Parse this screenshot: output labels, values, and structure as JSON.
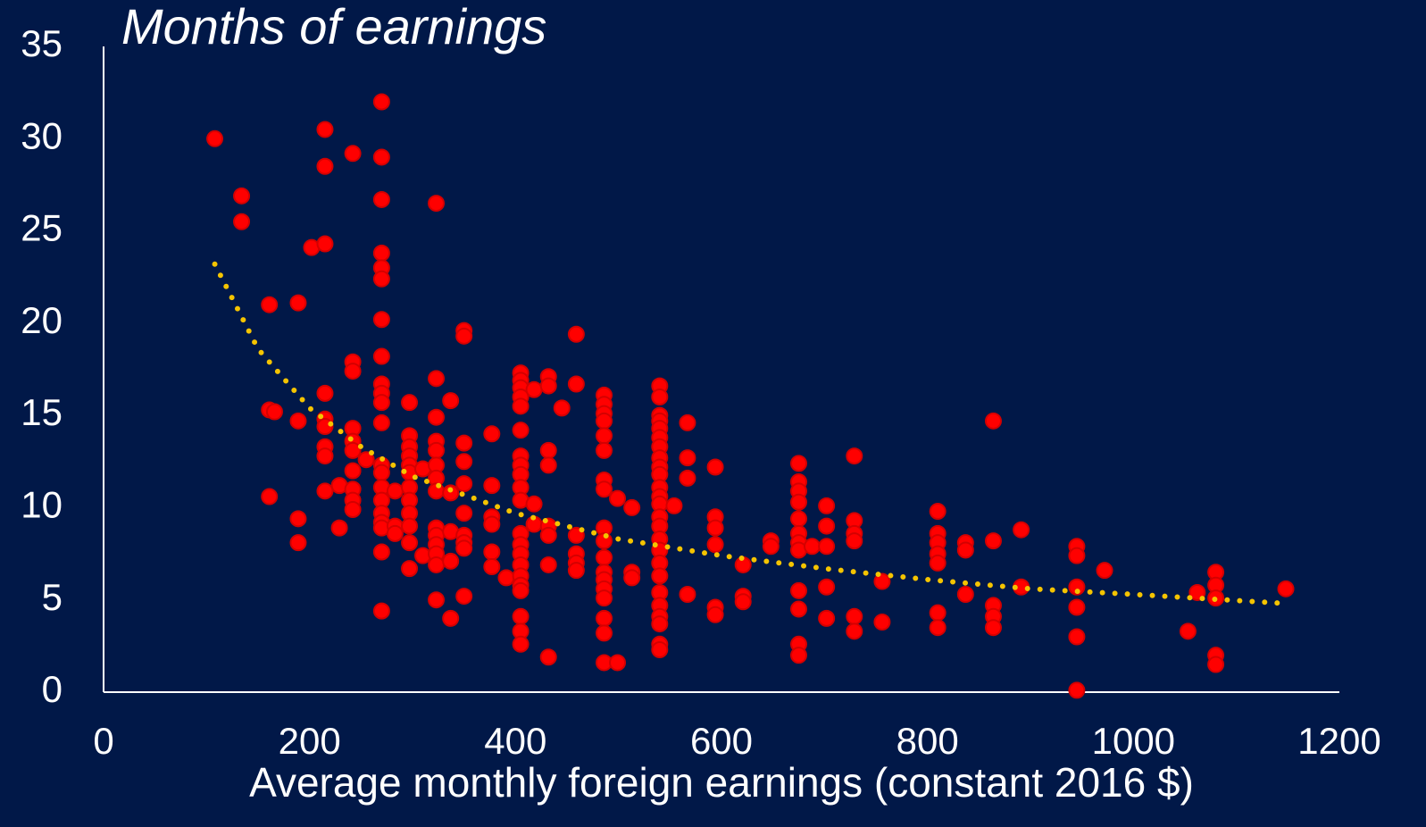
{
  "chart_data": {
    "type": "scatter",
    "title": "Months of earnings",
    "x_label": "Average monthly foreign earnings (constant 2016 $)",
    "color": "#ff0000",
    "x": [
      108,
      134,
      134,
      161,
      161,
      161,
      166,
      189,
      189,
      189,
      189,
      202,
      215,
      215,
      215,
      215,
      215,
      215,
      215,
      215,
      215,
      229,
      229,
      242,
      242,
      242,
      242,
      242,
      242,
      242,
      242,
      242,
      242,
      255,
      270,
      270,
      270,
      270,
      270,
      270,
      270,
      270,
      270,
      270,
      270,
      270,
      270,
      270,
      270,
      270,
      270,
      270,
      270,
      270,
      270,
      283,
      283,
      283,
      297,
      297,
      297,
      297,
      297,
      297,
      297,
      297,
      297,
      297,
      297,
      297,
      310,
      310,
      323,
      323,
      323,
      323,
      323,
      323,
      323,
      323,
      323,
      323,
      323,
      323,
      323,
      323,
      337,
      337,
      337,
      337,
      337,
      350,
      350,
      350,
      350,
      350,
      350,
      350,
      350,
      350,
      350,
      377,
      377,
      377,
      377,
      377,
      377,
      391,
      405,
      405,
      405,
      405,
      405,
      405,
      405,
      405,
      405,
      405,
      405,
      405,
      405,
      405,
      405,
      405,
      405,
      405,
      405,
      405,
      405,
      418,
      418,
      418,
      432,
      432,
      432,
      432,
      432,
      432,
      432,
      432,
      445,
      459,
      459,
      459,
      459,
      459,
      459,
      486,
      486,
      486,
      486,
      486,
      486,
      486,
      486,
      486,
      486,
      486,
      486,
      486,
      486,
      486,
      486,
      486,
      486,
      499,
      499,
      513,
      513,
      513,
      540,
      540,
      540,
      540,
      540,
      540,
      540,
      540,
      540,
      540,
      540,
      540,
      540,
      540,
      540,
      540,
      540,
      540,
      540,
      540,
      540,
      540,
      540,
      540,
      540,
      554,
      567,
      567,
      567,
      567,
      594,
      594,
      594,
      594,
      594,
      594,
      621,
      621,
      621,
      648,
      648,
      675,
      675,
      675,
      675,
      675,
      675,
      675,
      675,
      675,
      675,
      675,
      675,
      688,
      702,
      702,
      702,
      702,
      702,
      729,
      729,
      729,
      729,
      729,
      729,
      756,
      756,
      810,
      810,
      810,
      810,
      810,
      810,
      810,
      837,
      837,
      837,
      864,
      864,
      864,
      864,
      864,
      891,
      891,
      945,
      945,
      945,
      945,
      945,
      945,
      972,
      1053,
      1062,
      1080,
      1080,
      1080,
      1080,
      1080,
      1148
    ],
    "values": [
      30.0,
      26.9,
      25.5,
      21.0,
      15.3,
      10.6,
      15.2,
      21.1,
      14.7,
      9.4,
      8.1,
      24.1,
      30.5,
      28.5,
      24.3,
      16.2,
      14.8,
      14.4,
      13.3,
      12.8,
      10.9,
      11.2,
      8.9,
      29.2,
      17.9,
      17.4,
      14.3,
      13.6,
      13.1,
      12.0,
      11.0,
      10.4,
      9.9,
      12.6,
      32.0,
      29.0,
      26.7,
      23.8,
      23.0,
      22.4,
      20.2,
      18.2,
      16.7,
      16.2,
      15.7,
      14.6,
      12.3,
      11.9,
      11.1,
      10.4,
      9.7,
      9.2,
      8.9,
      7.6,
      4.4,
      10.9,
      9.0,
      8.6,
      15.7,
      13.9,
      13.3,
      12.8,
      12.3,
      11.9,
      11.1,
      10.4,
      9.7,
      9.0,
      8.1,
      6.7,
      12.1,
      7.4,
      26.5,
      17.0,
      14.9,
      13.6,
      13.1,
      12.3,
      11.6,
      10.9,
      8.9,
      8.5,
      8.0,
      7.5,
      6.9,
      5.0,
      15.8,
      10.8,
      8.7,
      7.1,
      4.0,
      19.6,
      19.3,
      13.5,
      12.5,
      11.3,
      9.7,
      8.5,
      8.1,
      7.8,
      5.2,
      14.0,
      11.2,
      9.5,
      9.1,
      7.6,
      6.8,
      6.2,
      17.3,
      16.9,
      16.5,
      16.0,
      15.5,
      14.2,
      12.8,
      12.3,
      11.8,
      11.1,
      10.4,
      8.6,
      8.0,
      7.5,
      6.9,
      6.3,
      5.8,
      5.5,
      4.1,
      3.3,
      2.6,
      16.4,
      10.2,
      9.1,
      17.1,
      16.6,
      13.1,
      12.3,
      9.0,
      8.5,
      6.9,
      1.9,
      15.4,
      19.4,
      16.7,
      8.5,
      7.5,
      7.0,
      6.6,
      16.1,
      15.6,
      15.1,
      14.7,
      13.9,
      13.1,
      11.5,
      11.0,
      8.9,
      8.2,
      7.3,
      6.5,
      6.1,
      5.6,
      5.1,
      4.0,
      3.2,
      1.6,
      10.5,
      1.6,
      10.0,
      6.5,
      6.2,
      16.6,
      16.0,
      15.0,
      14.7,
      14.3,
      13.8,
      13.3,
      12.7,
      12.2,
      11.8,
      11.1,
      10.6,
      10.2,
      9.5,
      9.0,
      8.3,
      7.7,
      7.0,
      6.3,
      5.4,
      4.7,
      4.1,
      3.7,
      2.6,
      2.3,
      10.1,
      14.6,
      12.7,
      11.6,
      5.3,
      12.2,
      9.5,
      8.9,
      8.0,
      4.6,
      4.2,
      6.9,
      5.2,
      4.9,
      8.2,
      7.9,
      12.4,
      11.4,
      10.9,
      10.3,
      9.4,
      8.6,
      8.1,
      7.7,
      5.5,
      4.5,
      2.6,
      2.0,
      7.9,
      10.1,
      9.0,
      7.9,
      5.7,
      4.0,
      12.8,
      9.3,
      8.6,
      8.2,
      4.1,
      3.3,
      6.0,
      3.8,
      9.8,
      8.6,
      8.1,
      7.5,
      7.0,
      4.3,
      3.5,
      8.1,
      7.7,
      5.3,
      14.7,
      8.2,
      4.7,
      4.1,
      3.5,
      8.8,
      5.7,
      7.9,
      7.4,
      5.7,
      4.6,
      3.0,
      0.1,
      6.6,
      3.3,
      5.4,
      6.5,
      5.8,
      5.1,
      2.0,
      1.5,
      5.6
    ],
    "trend": {
      "color": "#f5c400",
      "x": [
        108,
        150,
        200,
        250,
        300,
        400,
        500,
        600,
        700,
        800,
        900,
        1000,
        1150
      ],
      "values": [
        23.2,
        18.6,
        15.4,
        13.3,
        11.7,
        9.7,
        8.3,
        7.4,
        6.7,
        6.1,
        5.6,
        5.3,
        4.8
      ]
    },
    "xlim": [
      0,
      1200
    ],
    "xticks": [
      0,
      200,
      400,
      600,
      800,
      1000,
      1200
    ],
    "ylim": [
      0,
      35
    ],
    "yticks": [
      0,
      5,
      10,
      15,
      20,
      25,
      30,
      35
    ],
    "grid": false
  }
}
